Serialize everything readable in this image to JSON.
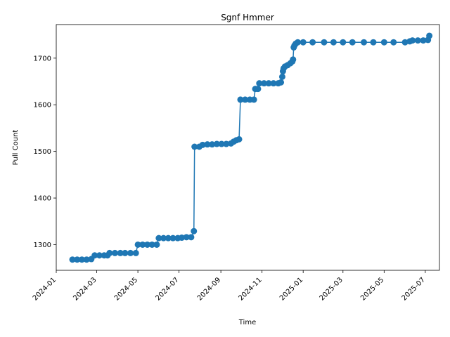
{
  "chart_data": {
    "type": "line",
    "title": "Sgnf Hmmer",
    "xlabel": "Time",
    "ylabel": "Pull Count",
    "marker": "circle",
    "grid": false,
    "legend": "none",
    "color": "#1f77b4",
    "xlim": [
      "2024-01-01",
      "2025-07-22"
    ],
    "ylim": [
      1245,
      1772
    ],
    "xticks": [
      "2024-01",
      "2024-03",
      "2024-05",
      "2024-07",
      "2024-09",
      "2024-11",
      "2025-01",
      "2025-03",
      "2025-05",
      "2025-07"
    ],
    "yticks": [
      1300,
      1400,
      1500,
      1600,
      1700
    ],
    "series": [
      {
        "points": [
          [
            "2024-01-25",
            1268
          ],
          [
            "2024-02-01",
            1268
          ],
          [
            "2024-02-08",
            1268
          ],
          [
            "2024-02-15",
            1268
          ],
          [
            "2024-02-22",
            1269
          ],
          [
            "2024-02-27",
            1277
          ],
          [
            "2024-03-05",
            1277
          ],
          [
            "2024-03-12",
            1277
          ],
          [
            "2024-03-17",
            1277
          ],
          [
            "2024-03-20",
            1282
          ],
          [
            "2024-03-28",
            1282
          ],
          [
            "2024-04-05",
            1282
          ],
          [
            "2024-04-12",
            1282
          ],
          [
            "2024-04-20",
            1282
          ],
          [
            "2024-04-28",
            1282
          ],
          [
            "2024-05-01",
            1300
          ],
          [
            "2024-05-08",
            1300
          ],
          [
            "2024-05-15",
            1300
          ],
          [
            "2024-05-22",
            1300
          ],
          [
            "2024-05-29",
            1300
          ],
          [
            "2024-06-01",
            1314
          ],
          [
            "2024-06-08",
            1314
          ],
          [
            "2024-06-15",
            1314
          ],
          [
            "2024-06-22",
            1314
          ],
          [
            "2024-06-29",
            1314
          ],
          [
            "2024-07-05",
            1315
          ],
          [
            "2024-07-12",
            1316
          ],
          [
            "2024-07-19",
            1316
          ],
          [
            "2024-07-23",
            1329
          ],
          [
            "2024-07-24",
            1510
          ],
          [
            "2024-07-31",
            1510
          ],
          [
            "2024-08-05",
            1514
          ],
          [
            "2024-08-12",
            1515
          ],
          [
            "2024-08-19",
            1515
          ],
          [
            "2024-08-26",
            1516
          ],
          [
            "2024-09-02",
            1516
          ],
          [
            "2024-09-09",
            1516
          ],
          [
            "2024-09-16",
            1517
          ],
          [
            "2024-09-20",
            1521
          ],
          [
            "2024-09-24",
            1524
          ],
          [
            "2024-09-28",
            1526
          ],
          [
            "2024-09-30",
            1611
          ],
          [
            "2024-10-07",
            1611
          ],
          [
            "2024-10-14",
            1611
          ],
          [
            "2024-10-20",
            1611
          ],
          [
            "2024-10-22",
            1634
          ],
          [
            "2024-10-26",
            1634
          ],
          [
            "2024-10-28",
            1646
          ],
          [
            "2024-11-04",
            1646
          ],
          [
            "2024-11-11",
            1646
          ],
          [
            "2024-11-18",
            1646
          ],
          [
            "2024-11-25",
            1646
          ],
          [
            "2024-11-29",
            1648
          ],
          [
            "2024-12-01",
            1660
          ],
          [
            "2024-12-02",
            1672
          ],
          [
            "2024-12-03",
            1678
          ],
          [
            "2024-12-05",
            1682
          ],
          [
            "2024-12-09",
            1685
          ],
          [
            "2024-12-13",
            1689
          ],
          [
            "2024-12-16",
            1693
          ],
          [
            "2024-12-17",
            1697
          ],
          [
            "2024-12-18",
            1723
          ],
          [
            "2024-12-19",
            1727
          ],
          [
            "2024-12-21",
            1731
          ],
          [
            "2024-12-24",
            1734
          ],
          [
            "2025-01-01",
            1734
          ],
          [
            "2025-01-15",
            1734
          ],
          [
            "2025-02-01",
            1734
          ],
          [
            "2025-02-15",
            1734
          ],
          [
            "2025-03-01",
            1734
          ],
          [
            "2025-03-15",
            1734
          ],
          [
            "2025-04-01",
            1734
          ],
          [
            "2025-04-15",
            1734
          ],
          [
            "2025-05-01",
            1734
          ],
          [
            "2025-05-15",
            1734
          ],
          [
            "2025-06-01",
            1734
          ],
          [
            "2025-06-08",
            1736
          ],
          [
            "2025-06-12",
            1738
          ],
          [
            "2025-06-20",
            1738
          ],
          [
            "2025-06-28",
            1738
          ],
          [
            "2025-07-05",
            1739
          ],
          [
            "2025-07-07",
            1748
          ]
        ]
      }
    ]
  }
}
